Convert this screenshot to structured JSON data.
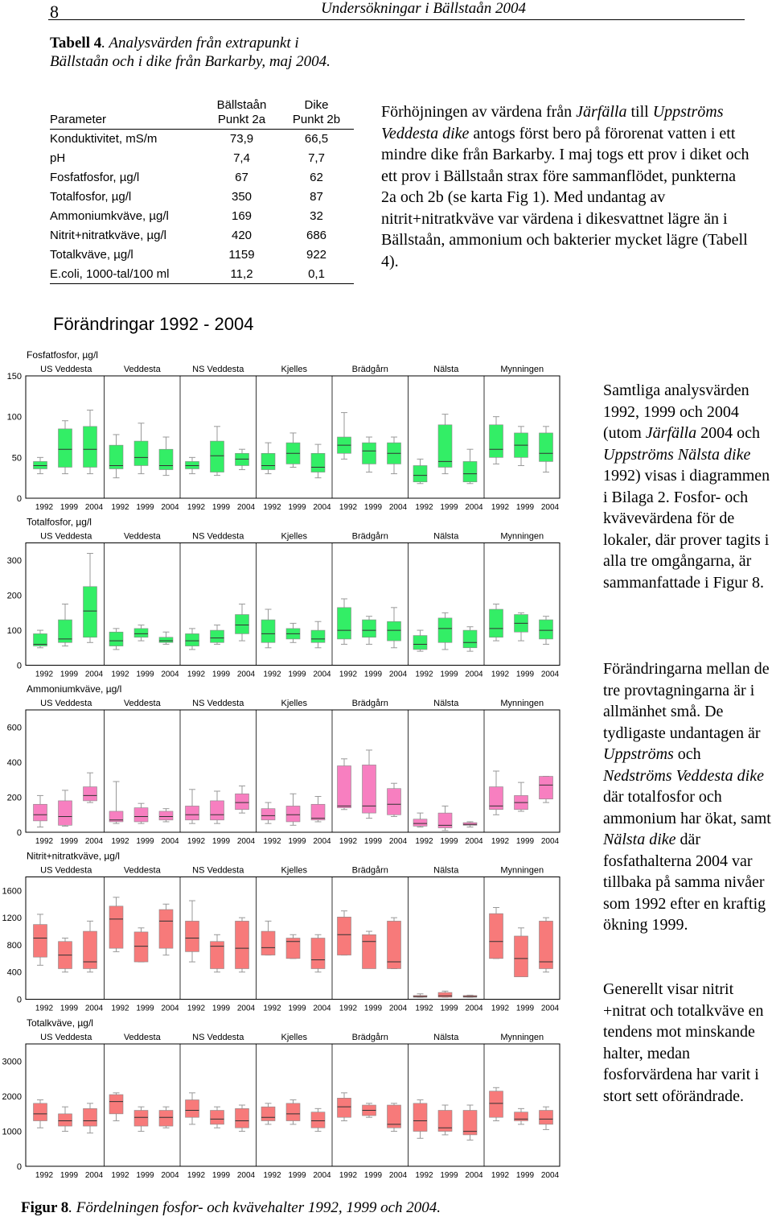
{
  "page": {
    "number": "8",
    "running_head": "Undersökningar i Bällstaån 2004"
  },
  "table": {
    "caption_label": "Tabell 4",
    "caption_text": ". Analysvärden från extrapunkt i Bällstaån och i dike från Barkarby, maj 2004.",
    "col_param": "Parameter",
    "col_a_line1": "Bällstaån",
    "col_a_line2": "Punkt 2a",
    "col_b_line1": "Dike",
    "col_b_line2": "Punkt 2b",
    "rows": [
      {
        "param": "Konduktivitet, mS/m",
        "a": "73,9",
        "b": "66,5"
      },
      {
        "param": "pH",
        "a": "7,4",
        "b": "7,7"
      },
      {
        "param": "Fosfatfosfor, µg/l",
        "a": "67",
        "b": "62"
      },
      {
        "param": "Totalfosfor, µg/l",
        "a": "350",
        "b": "87"
      },
      {
        "param": "Ammoniumkväve, µg/l",
        "a": "169",
        "b": "32"
      },
      {
        "param": "Nitrit+nitratkväve, µg/l",
        "a": "420",
        "b": "686"
      },
      {
        "param": "Totalkväve, µg/l",
        "a": "1159",
        "b": "922"
      },
      {
        "param": "E.coli, 1000-tal/100 ml",
        "a": "11,2",
        "b": "0,1"
      }
    ]
  },
  "right_paragraph": {
    "t1": "Förhöjningen av värdena från ",
    "i1": "Järfälla",
    "t2": " till ",
    "i2": "Uppströms Veddesta dike",
    "t3": " antogs först bero på förorenat vatten i ett mindre dike från Barkarby. I maj togs ett prov i diket och ett prov i Bällstaån strax före sammanflödet, punkterna 2a och 2b (se karta Fig 1). Med undantag av nitrit+nitratkväve var värdena i dikesvattnet lägre än i Bällstaån, ammonium och bakterier mycket lägre (Tabell 4)."
  },
  "side1": {
    "t1": "Samtliga analysvärden 1992, 1999 och 2004 (utom ",
    "i1": "Järfälla",
    "t2": " 2004 och ",
    "i2": "Uppströms Nälsta dike",
    "t3": " 1992) visas i diagrammen i Bilaga 2. Fosfor- och kvävevärdena för de lokaler, där prover tagits i alla tre omgångarna, är sammanfattade i Figur 8."
  },
  "side2": {
    "t1": "Förändringarna mellan de tre provtagningarna är i allmänhet små. De tydligaste undantagen är ",
    "i1": "Uppströms",
    "t2": " och ",
    "i2": "Nedströms Veddesta dike",
    "t3": " där totalfosfor och ammonium har ökat, samt ",
    "i3": "Nälsta dike",
    "t4": " där fosfathalterna 2004 var tillbaka på samma nivåer som 1992 efter en kraftig ökning 1999."
  },
  "side3": {
    "t1": "Generellt visar nitrit +nitrat och totalkväve en tendens mot minskande halter, medan fosforvärdena har varit i stort sett oförändrade."
  },
  "figure": {
    "title": "Förändringar 1992 - 2004",
    "caption_label": "Figur 8",
    "caption_text": ". Fördelningen fosfor- och kvävehalter 1992, 1999 och 2004."
  },
  "colors": {
    "green_box": "#33ee66",
    "pink_box": "#f77fc0",
    "red_box": "#f77a7a",
    "whisker": "#999999",
    "median": "#333333"
  },
  "chart_data": [
    {
      "type": "boxplot",
      "title": "Fosfatfosfor, µg/l",
      "color": "green",
      "ylim": [
        0,
        150
      ],
      "yticks": [
        "0",
        "50",
        "100",
        "150"
      ],
      "sites": [
        "US Veddesta",
        "Veddesta",
        "NS Veddesta",
        "Kjelles",
        "Brädgårn",
        "Nälsta",
        "Mynningen"
      ],
      "years": [
        "1992",
        "1999",
        "2004"
      ],
      "boxes": [
        [
          [
            30,
            36,
            40,
            45,
            50
          ],
          [
            30,
            38,
            60,
            85,
            95
          ],
          [
            30,
            38,
            60,
            88,
            108
          ]
        ],
        [
          [
            25,
            36,
            40,
            65,
            78
          ],
          [
            30,
            40,
            50,
            70,
            92
          ],
          [
            28,
            35,
            40,
            60,
            75
          ]
        ],
        [
          [
            30,
            36,
            40,
            45,
            50
          ],
          [
            28,
            32,
            52,
            70,
            88
          ],
          [
            35,
            40,
            48,
            55,
            60
          ]
        ],
        [
          [
            30,
            35,
            40,
            55,
            68
          ],
          [
            38,
            42,
            55,
            68,
            80
          ],
          [
            25,
            32,
            38,
            55,
            66
          ]
        ],
        [
          [
            48,
            55,
            65,
            75,
            105
          ],
          [
            32,
            42,
            58,
            68,
            75
          ],
          [
            30,
            42,
            55,
            68,
            75
          ]
        ],
        [
          [
            18,
            20,
            28,
            40,
            48
          ],
          [
            30,
            38,
            45,
            90,
            103
          ],
          [
            18,
            20,
            30,
            45,
            60
          ]
        ],
        [
          [
            42,
            50,
            60,
            90,
            100
          ],
          [
            40,
            50,
            65,
            80,
            88
          ],
          [
            32,
            45,
            55,
            80,
            88
          ]
        ]
      ]
    },
    {
      "type": "boxplot",
      "title": "Totalfosfor, µg/l",
      "color": "green",
      "ylim": [
        0,
        350
      ],
      "yticks": [
        "0",
        "100",
        "200",
        "300"
      ],
      "sites": [
        "US Veddesta",
        "Veddesta",
        "NS Veddesta",
        "Kjelles",
        "Brädgårn",
        "Nälsta",
        "Mynningen"
      ],
      "years": [
        "1992",
        "1999",
        "2004"
      ],
      "boxes": [
        [
          [
            50,
            55,
            60,
            90,
            100
          ],
          [
            55,
            65,
            75,
            130,
            175
          ],
          [
            65,
            80,
            155,
            225,
            320
          ]
        ],
        [
          [
            45,
            55,
            70,
            95,
            105
          ],
          [
            70,
            80,
            90,
            105,
            115
          ],
          [
            60,
            65,
            70,
            80,
            95
          ]
        ],
        [
          [
            45,
            55,
            70,
            90,
            105
          ],
          [
            60,
            65,
            78,
            100,
            115
          ],
          [
            70,
            90,
            115,
            145,
            175
          ]
        ],
        [
          [
            50,
            65,
            90,
            130,
            160
          ],
          [
            65,
            75,
            90,
            105,
            120
          ],
          [
            50,
            65,
            75,
            100,
            125
          ]
        ],
        [
          [
            60,
            75,
            100,
            165,
            190
          ],
          [
            60,
            80,
            100,
            130,
            140
          ],
          [
            50,
            70,
            100,
            125,
            165
          ]
        ],
        [
          [
            40,
            45,
            60,
            85,
            100
          ],
          [
            45,
            65,
            105,
            135,
            150
          ],
          [
            40,
            50,
            65,
            100,
            110
          ]
        ],
        [
          [
            70,
            80,
            105,
            160,
            175
          ],
          [
            70,
            95,
            120,
            145,
            150
          ],
          [
            60,
            75,
            100,
            130,
            140
          ]
        ]
      ]
    },
    {
      "type": "boxplot",
      "title": "Ammoniumkväve, µg/l",
      "color": "pink",
      "ylim": [
        0,
        700
      ],
      "yticks": [
        "0",
        "200",
        "400",
        "600"
      ],
      "sites": [
        "US Veddesta",
        "Veddesta",
        "NS Veddesta",
        "Kjelles",
        "Brädgårn",
        "Nälsta",
        "Mynningen"
      ],
      "years": [
        "1992",
        "1999",
        "2004"
      ],
      "boxes": [
        [
          [
            30,
            65,
            100,
            160,
            210
          ],
          [
            35,
            40,
            90,
            180,
            240
          ],
          [
            170,
            180,
            210,
            260,
            340
          ]
        ],
        [
          [
            50,
            60,
            70,
            120,
            290
          ],
          [
            50,
            60,
            90,
            140,
            165
          ],
          [
            60,
            70,
            90,
            120,
            135
          ]
        ],
        [
          [
            50,
            70,
            100,
            150,
            245
          ],
          [
            50,
            70,
            100,
            180,
            235
          ],
          [
            110,
            130,
            170,
            220,
            265
          ]
        ],
        [
          [
            50,
            70,
            95,
            135,
            170
          ],
          [
            40,
            60,
            100,
            150,
            220
          ],
          [
            60,
            70,
            80,
            160,
            205
          ]
        ],
        [
          [
            130,
            140,
            150,
            380,
            420
          ],
          [
            80,
            110,
            150,
            385,
            470
          ],
          [
            90,
            100,
            160,
            250,
            280
          ]
        ],
        [
          [
            30,
            35,
            50,
            75,
            110
          ],
          [
            10,
            25,
            40,
            110,
            150
          ],
          [
            30,
            40,
            45,
            55,
            60
          ]
        ],
        [
          [
            100,
            130,
            150,
            260,
            350
          ],
          [
            120,
            130,
            170,
            210,
            285
          ],
          [
            170,
            190,
            270,
            320,
            320
          ]
        ]
      ]
    },
    {
      "type": "boxplot",
      "title": "Nitrit+nitratkväve, µg/l",
      "color": "red",
      "ylim": [
        0,
        1800
      ],
      "yticks": [
        "0",
        "400",
        "800",
        "1200",
        "1600"
      ],
      "sites": [
        "US Veddesta",
        "Veddesta",
        "NS Veddesta",
        "Kjelles",
        "Brädgårn",
        "Nälsta",
        "Mynningen"
      ],
      "years": [
        "1992",
        "1999",
        "2004"
      ],
      "boxes": [
        [
          [
            500,
            620,
            900,
            1100,
            1250
          ],
          [
            400,
            450,
            650,
            850,
            900
          ],
          [
            400,
            450,
            550,
            1000,
            1150
          ]
        ],
        [
          [
            700,
            750,
            1180,
            1370,
            1500
          ],
          [
            550,
            550,
            780,
            990,
            1050
          ],
          [
            650,
            750,
            1150,
            1320,
            1400
          ]
        ],
        [
          [
            550,
            700,
            900,
            1150,
            1450
          ],
          [
            400,
            450,
            780,
            850,
            950
          ],
          [
            400,
            450,
            750,
            1150,
            1200
          ]
        ],
        [
          [
            650,
            650,
            760,
            1000,
            1150
          ],
          [
            600,
            600,
            850,
            900,
            950
          ],
          [
            400,
            450,
            580,
            900,
            950
          ]
        ],
        [
          [
            650,
            650,
            950,
            1210,
            1300
          ],
          [
            550,
            450,
            850,
            950,
            1000
          ],
          [
            450,
            450,
            550,
            1150,
            1200
          ]
        ],
        [
          [
            30,
            30,
            40,
            55,
            80
          ],
          [
            30,
            30,
            50,
            100,
            120
          ],
          [
            30,
            30,
            40,
            55,
            60
          ]
        ],
        [
          [
            600,
            600,
            850,
            1260,
            1350
          ],
          [
            400,
            330,
            600,
            930,
            1050
          ],
          [
            400,
            450,
            550,
            1150,
            1200
          ]
        ]
      ]
    },
    {
      "type": "boxplot",
      "title": "Totalkväve, µg/l",
      "color": "red",
      "ylim": [
        0,
        3500
      ],
      "yticks": [
        "0",
        "1000",
        "2000",
        "3000"
      ],
      "sites": [
        "US Veddesta",
        "Veddesta",
        "NS Veddesta",
        "Kjelles",
        "Brädgårn",
        "Nälsta",
        "Mynningen"
      ],
      "years": [
        "1992",
        "1999",
        "2004"
      ],
      "boxes": [
        [
          [
            1100,
            1300,
            1500,
            1800,
            1900
          ],
          [
            1000,
            1150,
            1300,
            1500,
            1700
          ],
          [
            950,
            1150,
            1300,
            1650,
            1800
          ]
        ],
        [
          [
            1300,
            1500,
            1850,
            2050,
            2100
          ],
          [
            1000,
            1150,
            1400,
            1600,
            1700
          ],
          [
            1100,
            1150,
            1400,
            1600,
            1700
          ]
        ],
        [
          [
            1200,
            1400,
            1600,
            1900,
            2100
          ],
          [
            1100,
            1200,
            1350,
            1600,
            1700
          ],
          [
            1000,
            1100,
            1300,
            1650,
            1750
          ]
        ],
        [
          [
            1200,
            1300,
            1400,
            1700,
            1800
          ],
          [
            1200,
            1300,
            1500,
            1800,
            1900
          ],
          [
            1000,
            1100,
            1300,
            1550,
            1650
          ]
        ],
        [
          [
            1300,
            1400,
            1700,
            1950,
            2100
          ],
          [
            1400,
            1450,
            1600,
            1750,
            1800
          ],
          [
            1000,
            1100,
            1200,
            1750,
            1800
          ]
        ],
        [
          [
            800,
            1000,
            1300,
            1800,
            1900
          ],
          [
            900,
            1000,
            1100,
            1600,
            1750
          ],
          [
            750,
            900,
            1000,
            1600,
            1750
          ]
        ],
        [
          [
            1300,
            1400,
            1800,
            2150,
            2250
          ],
          [
            1200,
            1300,
            1350,
            1550,
            1650
          ],
          [
            1050,
            1200,
            1350,
            1600,
            1700
          ]
        ]
      ]
    }
  ]
}
